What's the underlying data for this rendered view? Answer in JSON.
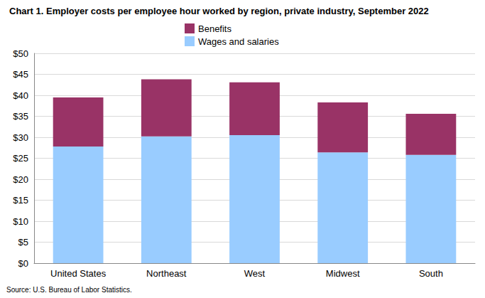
{
  "chart_data": {
    "type": "bar",
    "title": "Chart 1. Employer costs per employee hour worked by region, private industry, September 2022",
    "source": "Source: U.S. Bureau of Labor Statistics.",
    "categories": [
      "United States",
      "Northeast",
      "West",
      "Midwest",
      "South"
    ],
    "series": [
      {
        "name": "Wages and salaries",
        "color": "#99ccff",
        "values": [
          27.8,
          30.2,
          30.5,
          26.4,
          25.8
        ]
      },
      {
        "name": "Benefits",
        "color": "#993366",
        "values": [
          11.7,
          13.6,
          12.6,
          11.9,
          9.8
        ]
      }
    ],
    "stacked": true,
    "ylim": [
      0,
      50
    ],
    "yticks": [
      {
        "value": 0,
        "label": "$0"
      },
      {
        "value": 5,
        "label": "$5"
      },
      {
        "value": 10,
        "label": "$10"
      },
      {
        "value": 15,
        "label": "$15"
      },
      {
        "value": 20,
        "label": "$20"
      },
      {
        "value": 25,
        "label": "$25"
      },
      {
        "value": 30,
        "label": "$30"
      },
      {
        "value": 35,
        "label": "$35"
      },
      {
        "value": 40,
        "label": "$40"
      },
      {
        "value": 45,
        "label": "$45"
      },
      {
        "value": 50,
        "label": "$50"
      }
    ],
    "grid": true,
    "legend": "top"
  }
}
